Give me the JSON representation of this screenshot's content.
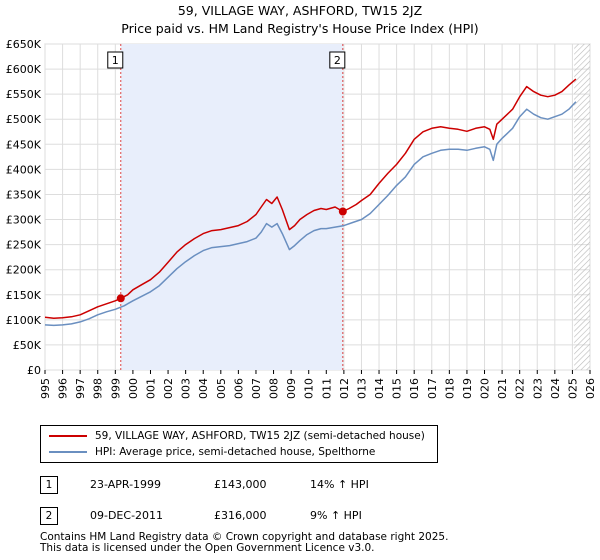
{
  "chart_data": {
    "type": "line",
    "title": "59, VILLAGE WAY, ASHFORD, TW15 2JZ",
    "subtitle": "Price paid vs. HM Land Registry's House Price Index (HPI)",
    "xlim": [
      1995,
      2026
    ],
    "ylim": [
      0,
      650000
    ],
    "x_ticks": [
      "1995",
      "1996",
      "1997",
      "1998",
      "1999",
      "2000",
      "2001",
      "2002",
      "2003",
      "2004",
      "2005",
      "2006",
      "2007",
      "2008",
      "2009",
      "2010",
      "2011",
      "2012",
      "2013",
      "2014",
      "2015",
      "2016",
      "2017",
      "2018",
      "2019",
      "2020",
      "2021",
      "2022",
      "2023",
      "2024",
      "2025",
      "2026"
    ],
    "y_ticks": [
      {
        "value": 0,
        "label": "£0"
      },
      {
        "value": 50000,
        "label": "£50K"
      },
      {
        "value": 100000,
        "label": "£100K"
      },
      {
        "value": 150000,
        "label": "£150K"
      },
      {
        "value": 200000,
        "label": "£200K"
      },
      {
        "value": 250000,
        "label": "£250K"
      },
      {
        "value": 300000,
        "label": "£300K"
      },
      {
        "value": 350000,
        "label": "£350K"
      },
      {
        "value": 400000,
        "label": "£400K"
      },
      {
        "value": 450000,
        "label": "£450K"
      },
      {
        "value": 500000,
        "label": "£500K"
      },
      {
        "value": 550000,
        "label": "£550K"
      },
      {
        "value": 600000,
        "label": "£600K"
      },
      {
        "value": 650000,
        "label": "£650K"
      }
    ],
    "shaded_period": [
      1999.31,
      2011.94
    ],
    "future_hatch_start": 2025.1,
    "series": [
      {
        "name": "59, VILLAGE WAY, ASHFORD, TW15 2JZ (semi-detached house)",
        "color": "#cc0000",
        "x": [
          1995.0,
          1995.5,
          1996.0,
          1996.5,
          1997.0,
          1997.5,
          1998.0,
          1998.5,
          1999.0,
          1999.31,
          1999.7,
          2000.0,
          2000.5,
          2001.0,
          2001.5,
          2002.0,
          2002.5,
          2003.0,
          2003.5,
          2004.0,
          2004.5,
          2005.0,
          2005.5,
          2006.0,
          2006.5,
          2007.0,
          2007.3,
          2007.6,
          2007.9,
          2008.2,
          2008.5,
          2008.9,
          2009.2,
          2009.5,
          2009.9,
          2010.3,
          2010.7,
          2011.0,
          2011.5,
          2011.94,
          2012.3,
          2012.7,
          2013.0,
          2013.5,
          2014.0,
          2014.5,
          2015.0,
          2015.5,
          2016.0,
          2016.5,
          2017.0,
          2017.5,
          2018.0,
          2018.5,
          2019.0,
          2019.5,
          2020.0,
          2020.3,
          2020.5,
          2020.7,
          2021.0,
          2021.3,
          2021.6,
          2022.0,
          2022.4,
          2022.8,
          2023.2,
          2023.6,
          2024.0,
          2024.4,
          2024.8,
          2025.2
        ],
        "values": [
          105000,
          103000,
          104000,
          106000,
          110000,
          118000,
          126000,
          132000,
          138000,
          143000,
          150000,
          160000,
          170000,
          180000,
          195000,
          215000,
          235000,
          250000,
          262000,
          272000,
          278000,
          280000,
          284000,
          288000,
          296000,
          310000,
          325000,
          340000,
          332000,
          345000,
          320000,
          280000,
          288000,
          300000,
          310000,
          318000,
          322000,
          320000,
          325000,
          316000,
          322000,
          330000,
          338000,
          350000,
          372000,
          392000,
          410000,
          432000,
          460000,
          475000,
          482000,
          485000,
          482000,
          480000,
          476000,
          482000,
          485000,
          480000,
          460000,
          490000,
          500000,
          510000,
          520000,
          545000,
          565000,
          555000,
          548000,
          545000,
          548000,
          555000,
          568000,
          580000
        ]
      },
      {
        "name": "HPI: Average price, semi-detached house, Spelthorne",
        "color": "#6a8fc0",
        "x": [
          1995.0,
          1995.5,
          1996.0,
          1996.5,
          1997.0,
          1997.5,
          1998.0,
          1998.5,
          1999.0,
          1999.5,
          2000.0,
          2000.5,
          2001.0,
          2001.5,
          2002.0,
          2002.5,
          2003.0,
          2003.5,
          2004.0,
          2004.5,
          2005.0,
          2005.5,
          2006.0,
          2006.5,
          2007.0,
          2007.3,
          2007.6,
          2007.9,
          2008.2,
          2008.5,
          2008.9,
          2009.2,
          2009.5,
          2009.9,
          2010.3,
          2010.7,
          2011.0,
          2011.5,
          2012.0,
          2012.5,
          2013.0,
          2013.5,
          2014.0,
          2014.5,
          2015.0,
          2015.5,
          2016.0,
          2016.5,
          2017.0,
          2017.5,
          2018.0,
          2018.5,
          2019.0,
          2019.5,
          2020.0,
          2020.3,
          2020.5,
          2020.7,
          2021.0,
          2021.3,
          2021.6,
          2022.0,
          2022.4,
          2022.8,
          2023.2,
          2023.6,
          2024.0,
          2024.4,
          2024.8,
          2025.2
        ],
        "values": [
          90000,
          89000,
          90000,
          92000,
          96000,
          102000,
          110000,
          116000,
          121000,
          128000,
          138000,
          147000,
          156000,
          168000,
          185000,
          202000,
          216000,
          228000,
          238000,
          244000,
          246000,
          248000,
          252000,
          256000,
          263000,
          275000,
          292000,
          285000,
          292000,
          272000,
          240000,
          248000,
          258000,
          270000,
          278000,
          282000,
          282000,
          285000,
          288000,
          294000,
          300000,
          312000,
          330000,
          348000,
          368000,
          385000,
          410000,
          425000,
          432000,
          438000,
          440000,
          440000,
          438000,
          442000,
          445000,
          440000,
          418000,
          450000,
          462000,
          472000,
          482000,
          505000,
          520000,
          510000,
          503000,
          500000,
          505000,
          510000,
          520000,
          535000
        ]
      }
    ],
    "sales": [
      {
        "id": "1",
        "x": 1999.31,
        "value": 143000
      },
      {
        "id": "2",
        "x": 2011.94,
        "value": 316000
      }
    ]
  },
  "legend": {
    "items": [
      {
        "label": "59, VILLAGE WAY, ASHFORD, TW15 2JZ (semi-detached house)",
        "color": "#cc0000"
      },
      {
        "label": "HPI: Average price, semi-detached house, Spelthorne",
        "color": "#6a8fc0"
      }
    ]
  },
  "transactions": [
    {
      "num": "1",
      "date": "23-APR-1999",
      "price": "£143,000",
      "hpi": "14% ↑ HPI"
    },
    {
      "num": "2",
      "date": "09-DEC-2011",
      "price": "£316,000",
      "hpi": "9% ↑ HPI"
    }
  ],
  "footer": {
    "line1": "Contains HM Land Registry data © Crown copyright and database right 2025.",
    "line2": "This data is licensed under the Open Government Licence v3.0."
  }
}
